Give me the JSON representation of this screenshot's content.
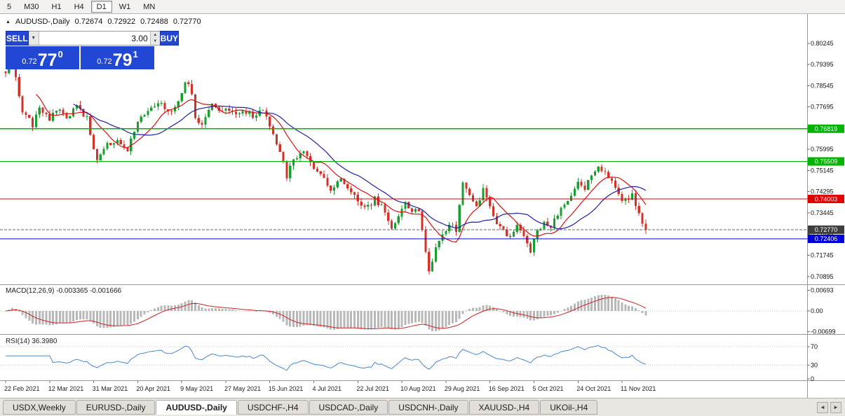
{
  "toolbar": {
    "timeframes": [
      {
        "label": "5",
        "active": false
      },
      {
        "label": "M30",
        "active": false
      },
      {
        "label": "H1",
        "active": false
      },
      {
        "label": "H4",
        "active": false
      },
      {
        "label": "D1",
        "active": true
      },
      {
        "label": "W1",
        "active": false
      },
      {
        "label": "MN",
        "active": false
      }
    ]
  },
  "chart_header": {
    "collapse_icon": "▲",
    "symbol": "AUDUSD-,Daily",
    "open": "0.72674",
    "high": "0.72922",
    "low": "0.72488",
    "close": "0.72770"
  },
  "one_click_trading": {
    "sell_label": "SELL",
    "buy_label": "BUY",
    "volume": "3.00",
    "dropdown_icon": "▼",
    "spin_up_icon": "▲",
    "spin_down_icon": "▼",
    "sell_price": {
      "small": "0.72",
      "big": "77",
      "sup": "0"
    },
    "buy_price": {
      "small": "0.72",
      "big": "79",
      "sup": "1"
    }
  },
  "colors": {
    "trade_panel_blue": "#2247d5",
    "up_candle": "#17a02e",
    "down_candle": "#d33227",
    "ma_fast": "#dd1111",
    "ma_slow": "#2020a8",
    "bid_badge": "#3f3f3f",
    "macd_histogram": "#b8b8b8",
    "macd_signal": "#cc2222",
    "rsi_line": "#4c86c8"
  },
  "chart_data": {
    "type": "candlestick",
    "symbol": "AUDUSD-,Daily",
    "candle_count": 190,
    "last_close_value": 0.7277,
    "price_path_anchors": [
      [
        0,
        0.7915
      ],
      [
        2,
        0.8
      ],
      [
        3,
        0.788
      ],
      [
        5,
        0.7745
      ],
      [
        8,
        0.77
      ],
      [
        10,
        0.7775
      ],
      [
        13,
        0.7712
      ],
      [
        15,
        0.776
      ],
      [
        18,
        0.7722
      ],
      [
        21,
        0.777
      ],
      [
        24,
        0.7722
      ],
      [
        26,
        0.759
      ],
      [
        27,
        0.7562
      ],
      [
        29,
        0.7608
      ],
      [
        33,
        0.7638
      ],
      [
        36,
        0.76
      ],
      [
        39,
        0.7708
      ],
      [
        42,
        0.7755
      ],
      [
        45,
        0.779
      ],
      [
        48,
        0.7752
      ],
      [
        51,
        0.7785
      ],
      [
        53,
        0.7872
      ],
      [
        55,
        0.783
      ],
      [
        56,
        0.7725
      ],
      [
        58,
        0.77
      ],
      [
        61,
        0.7775
      ],
      [
        64,
        0.776
      ],
      [
        67,
        0.7742
      ],
      [
        70,
        0.7758
      ],
      [
        73,
        0.7738
      ],
      [
        76,
        0.7752
      ],
      [
        78,
        0.7692
      ],
      [
        80,
        0.761
      ],
      [
        82,
        0.7548
      ],
      [
        83,
        0.749
      ],
      [
        85,
        0.7565
      ],
      [
        88,
        0.7585
      ],
      [
        91,
        0.7522
      ],
      [
        94,
        0.7488
      ],
      [
        96,
        0.7442
      ],
      [
        99,
        0.7478
      ],
      [
        102,
        0.7435
      ],
      [
        104,
        0.7392
      ],
      [
        107,
        0.7368
      ],
      [
        109,
        0.74
      ],
      [
        112,
        0.7352
      ],
      [
        114,
        0.729
      ],
      [
        116,
        0.7325
      ],
      [
        118,
        0.7382
      ],
      [
        120,
        0.7345
      ],
      [
        122,
        0.736
      ],
      [
        124,
        0.718
      ],
      [
        125,
        0.711
      ],
      [
        127,
        0.721
      ],
      [
        129,
        0.7258
      ],
      [
        131,
        0.7302
      ],
      [
        133,
        0.7272
      ],
      [
        135,
        0.7468
      ],
      [
        137,
        0.7408
      ],
      [
        139,
        0.7362
      ],
      [
        141,
        0.7438
      ],
      [
        143,
        0.737
      ],
      [
        145,
        0.731
      ],
      [
        147,
        0.7268
      ],
      [
        149,
        0.7245
      ],
      [
        151,
        0.7292
      ],
      [
        153,
        0.7262
      ],
      [
        155,
        0.719
      ],
      [
        157,
        0.7268
      ],
      [
        159,
        0.7302
      ],
      [
        161,
        0.7288
      ],
      [
        163,
        0.7342
      ],
      [
        165,
        0.7388
      ],
      [
        167,
        0.7412
      ],
      [
        169,
        0.7468
      ],
      [
        171,
        0.7442
      ],
      [
        173,
        0.7492
      ],
      [
        175,
        0.7532
      ],
      [
        177,
        0.7512
      ],
      [
        179,
        0.747
      ],
      [
        181,
        0.7415
      ],
      [
        183,
        0.7392
      ],
      [
        185,
        0.7412
      ],
      [
        187,
        0.7338
      ],
      [
        189,
        0.7277
      ]
    ],
    "price_axis_ticks": [
      "0.80245",
      "0.79395",
      "0.78545",
      "0.77695",
      "0.76845",
      "0.75995",
      "0.75145",
      "0.74295",
      "0.73445",
      "0.72595",
      "0.71745",
      "0.70895"
    ],
    "horizontal_lines": [
      {
        "value": "0.76819",
        "price": 0.76819,
        "color": "#00b400",
        "style": "solid"
      },
      {
        "value": "0.75509",
        "price": 0.75509,
        "color": "#00b400",
        "style": "solid"
      },
      {
        "value": "0.74003",
        "price": 0.74003,
        "color": "#e00000",
        "style": "solid"
      },
      {
        "value": "0.72406",
        "price": 0.72406,
        "color": "#0000d8",
        "style": "solid"
      }
    ],
    "bid_line": {
      "value": "0.72770",
      "price": 0.7277,
      "color": "#3f3f3f",
      "style": "dash"
    },
    "date_labels": [
      "22 Feb 2021",
      "12 Mar 2021",
      "31 Mar 2021",
      "20 Apr 2021",
      "9 May 2021",
      "27 May 2021",
      "15 Jun 2021",
      "4 Jul 2021",
      "22 Jul 2021",
      "10 Aug 2021",
      "29 Aug 2021",
      "16 Sep 2021",
      "5 Oct 2021",
      "24 Oct 2021",
      "11 Nov 2021"
    ],
    "moving_averages": [
      {
        "period": 10,
        "color": "#dd1111"
      },
      {
        "period": 21,
        "color": "#2020a8"
      }
    ],
    "indicators": {
      "macd": {
        "label": "MACD(12,26,9)",
        "values": [
          "-0.003365",
          "-0.001666"
        ],
        "axis_ticks": [
          "0.00693",
          "0.00",
          "-0.00699"
        ],
        "fast": 12,
        "slow": 26,
        "signal": 9
      },
      "rsi": {
        "label": "RSI(14)",
        "value": "36.3980",
        "period": 14,
        "axis_ticks": [
          "70",
          "30",
          "0"
        ],
        "levels": [
          70,
          30
        ]
      }
    }
  },
  "tabs": {
    "items": [
      {
        "label": "USDX,Weekly",
        "active": false
      },
      {
        "label": "EURUSD-,Daily",
        "active": false
      },
      {
        "label": "AUDUSD-,Daily",
        "active": true
      },
      {
        "label": "USDCHF-,H4",
        "active": false
      },
      {
        "label": "USDCAD-,Daily",
        "active": false
      },
      {
        "label": "USDCNH-,Daily",
        "active": false
      },
      {
        "label": "XAUUSD-,H4",
        "active": false
      },
      {
        "label": "UKOil-,H4",
        "active": false
      }
    ],
    "scroll_left_icon": "◄",
    "scroll_right_icon": "►"
  }
}
